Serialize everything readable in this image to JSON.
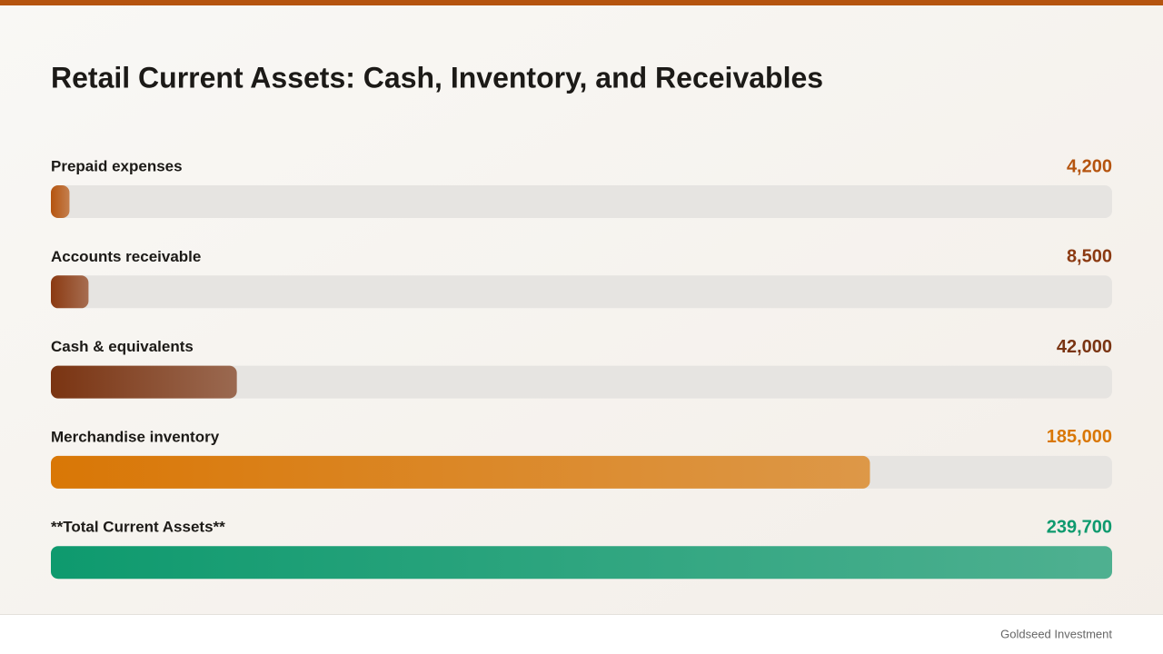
{
  "chart_data": {
    "type": "bar",
    "orientation": "horizontal",
    "title": "Retail Current Assets: Cash, Inventory, and Receivables",
    "categories": [
      "Prepaid expenses",
      "Accounts receivable",
      "Cash & equivalents",
      "Merchandise inventory",
      "**Total Current Assets**"
    ],
    "values": [
      4200,
      8500,
      42000,
      185000,
      239700
    ],
    "value_labels": [
      "4,200",
      "8,500",
      "42,000",
      "185,000",
      "239,700"
    ],
    "colors": [
      "#b5540f",
      "#8b3a12",
      "#7a3412",
      "#d97706",
      "#0e9a6e"
    ]
  },
  "footer": "Goldseed Investment"
}
